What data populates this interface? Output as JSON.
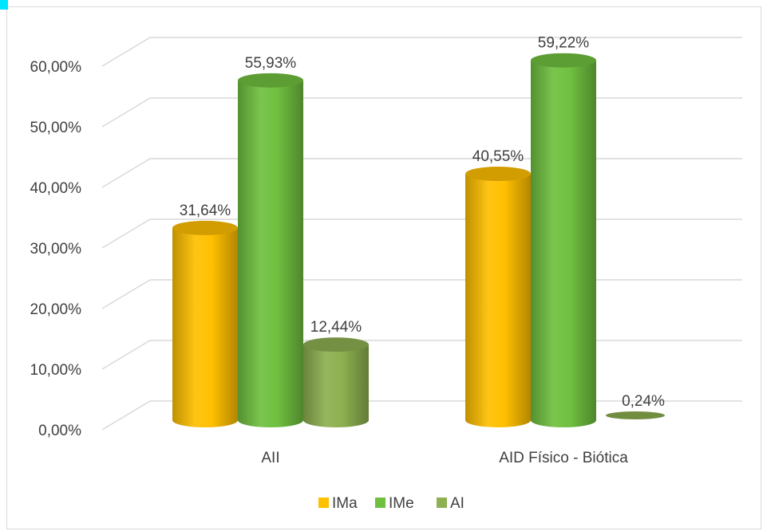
{
  "chart_data": {
    "type": "bar",
    "style": "3d-cylinder",
    "categories": [
      "AII",
      "AID Físico - Biótica"
    ],
    "series": [
      {
        "name": "IMa",
        "values": [
          31.64,
          40.55
        ],
        "labels": [
          "31,64%",
          "40,55%"
        ],
        "color": "#ffc000"
      },
      {
        "name": "IMe",
        "values": [
          55.93,
          59.22
        ],
        "labels": [
          "55,93%",
          "59,22%"
        ],
        "color": "#70c040"
      },
      {
        "name": "AI",
        "values": [
          12.44,
          0.24
        ],
        "labels": [
          "12,44%",
          "0,24%"
        ],
        "color": "#8db050"
      }
    ],
    "y_ticks": [
      "0,00%",
      "10,00%",
      "20,00%",
      "30,00%",
      "40,00%",
      "50,00%",
      "60,00%"
    ],
    "ylim": [
      0,
      60
    ],
    "grid": true,
    "legend_position": "bottom"
  }
}
